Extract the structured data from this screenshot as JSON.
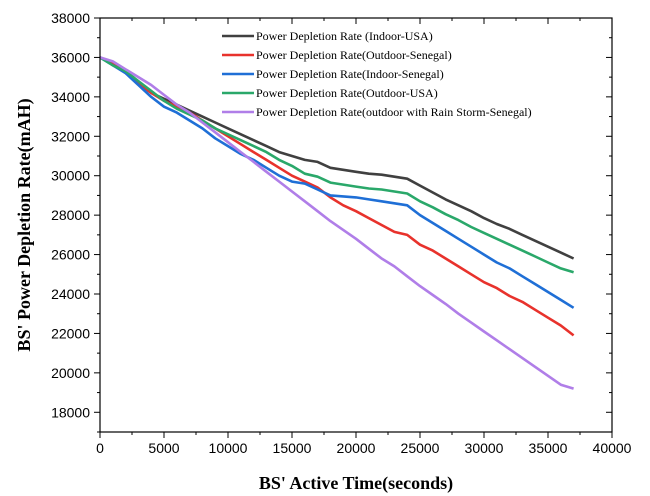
{
  "chart_data": {
    "type": "line",
    "xlabel": "BS' Active Time(seconds)",
    "ylabel": "BS' Power Depletion Rate(mAH)",
    "xlim": [
      0,
      40000
    ],
    "ylim": [
      17000,
      38000
    ],
    "xticks": [
      0,
      5000,
      10000,
      15000,
      20000,
      25000,
      30000,
      35000,
      40000
    ],
    "yticks": [
      18000,
      20000,
      22000,
      24000,
      26000,
      28000,
      30000,
      32000,
      34000,
      36000,
      38000
    ],
    "legend_position": "top-right",
    "grid": false,
    "series": [
      {
        "name": "Power Depletion Rate (Indoor-USA)",
        "color": "#404040",
        "points": [
          [
            0,
            36000
          ],
          [
            1000,
            35700
          ],
          [
            2000,
            35300
          ],
          [
            3000,
            34700
          ],
          [
            4000,
            34200
          ],
          [
            5000,
            33900
          ],
          [
            6000,
            33600
          ],
          [
            7000,
            33300
          ],
          [
            8000,
            33000
          ],
          [
            9000,
            32700
          ],
          [
            10000,
            32400
          ],
          [
            11000,
            32100
          ],
          [
            12000,
            31800
          ],
          [
            13000,
            31500
          ],
          [
            14000,
            31200
          ],
          [
            15000,
            31000
          ],
          [
            16000,
            30800
          ],
          [
            17000,
            30700
          ],
          [
            18000,
            30400
          ],
          [
            19000,
            30300
          ],
          [
            20000,
            30200
          ],
          [
            21000,
            30100
          ],
          [
            22000,
            30050
          ],
          [
            23000,
            29950
          ],
          [
            24000,
            29850
          ],
          [
            25000,
            29500
          ],
          [
            26000,
            29150
          ],
          [
            27000,
            28800
          ],
          [
            28000,
            28500
          ],
          [
            29000,
            28200
          ],
          [
            30000,
            27850
          ],
          [
            31000,
            27550
          ],
          [
            32000,
            27300
          ],
          [
            33000,
            27000
          ],
          [
            34000,
            26700
          ],
          [
            35000,
            26400
          ],
          [
            36000,
            26100
          ],
          [
            37000,
            25800
          ]
        ]
      },
      {
        "name": "Power Depletion Rate(Outdoor-Senegal)",
        "color": "#e8322c",
        "points": [
          [
            0,
            36000
          ],
          [
            1000,
            35700
          ],
          [
            2000,
            35300
          ],
          [
            3000,
            34700
          ],
          [
            4000,
            34200
          ],
          [
            5000,
            33800
          ],
          [
            6000,
            33500
          ],
          [
            7000,
            33200
          ],
          [
            8000,
            32800
          ],
          [
            9000,
            32400
          ],
          [
            10000,
            32000
          ],
          [
            11000,
            31600
          ],
          [
            12000,
            31200
          ],
          [
            13000,
            30800
          ],
          [
            14000,
            30400
          ],
          [
            15000,
            30000
          ],
          [
            16000,
            29700
          ],
          [
            17000,
            29400
          ],
          [
            18000,
            28900
          ],
          [
            19000,
            28500
          ],
          [
            20000,
            28200
          ],
          [
            21000,
            27850
          ],
          [
            22000,
            27500
          ],
          [
            23000,
            27150
          ],
          [
            24000,
            27000
          ],
          [
            25000,
            26500
          ],
          [
            26000,
            26200
          ],
          [
            27000,
            25800
          ],
          [
            28000,
            25400
          ],
          [
            29000,
            25000
          ],
          [
            30000,
            24600
          ],
          [
            31000,
            24300
          ],
          [
            32000,
            23900
          ],
          [
            33000,
            23600
          ],
          [
            34000,
            23200
          ],
          [
            35000,
            22800
          ],
          [
            36000,
            22400
          ],
          [
            37000,
            21900
          ]
        ]
      },
      {
        "name": "Power Depletion Rate(Indoor-Senegal)",
        "color": "#1f6fd6",
        "points": [
          [
            0,
            36000
          ],
          [
            1000,
            35600
          ],
          [
            2000,
            35200
          ],
          [
            3000,
            34600
          ],
          [
            4000,
            34000
          ],
          [
            5000,
            33500
          ],
          [
            6000,
            33200
          ],
          [
            7000,
            32800
          ],
          [
            8000,
            32400
          ],
          [
            9000,
            31900
          ],
          [
            10000,
            31500
          ],
          [
            11000,
            31100
          ],
          [
            12000,
            30800
          ],
          [
            13000,
            30400
          ],
          [
            14000,
            30000
          ],
          [
            15000,
            29700
          ],
          [
            16000,
            29600
          ],
          [
            17000,
            29300
          ],
          [
            18000,
            29000
          ],
          [
            19000,
            28950
          ],
          [
            20000,
            28900
          ],
          [
            21000,
            28800
          ],
          [
            22000,
            28700
          ],
          [
            23000,
            28600
          ],
          [
            24000,
            28500
          ],
          [
            25000,
            28000
          ],
          [
            26000,
            27600
          ],
          [
            27000,
            27200
          ],
          [
            28000,
            26800
          ],
          [
            29000,
            26400
          ],
          [
            30000,
            26000
          ],
          [
            31000,
            25600
          ],
          [
            32000,
            25300
          ],
          [
            33000,
            24900
          ],
          [
            34000,
            24500
          ],
          [
            35000,
            24100
          ],
          [
            36000,
            23700
          ],
          [
            37000,
            23300
          ]
        ]
      },
      {
        "name": "Power Depletion Rate(Outdoor-USA)",
        "color": "#2aa86a",
        "points": [
          [
            0,
            36000
          ],
          [
            1000,
            35600
          ],
          [
            2000,
            35300
          ],
          [
            3000,
            34800
          ],
          [
            4000,
            34300
          ],
          [
            5000,
            33800
          ],
          [
            6000,
            33400
          ],
          [
            7000,
            33100
          ],
          [
            8000,
            32800
          ],
          [
            9000,
            32400
          ],
          [
            10000,
            32100
          ],
          [
            11000,
            31800
          ],
          [
            12000,
            31500
          ],
          [
            13000,
            31200
          ],
          [
            14000,
            30800
          ],
          [
            15000,
            30500
          ],
          [
            16000,
            30100
          ],
          [
            17000,
            29950
          ],
          [
            18000,
            29650
          ],
          [
            19000,
            29550
          ],
          [
            20000,
            29450
          ],
          [
            21000,
            29350
          ],
          [
            22000,
            29300
          ],
          [
            23000,
            29200
          ],
          [
            24000,
            29100
          ],
          [
            25000,
            28700
          ],
          [
            26000,
            28400
          ],
          [
            27000,
            28050
          ],
          [
            28000,
            27750
          ],
          [
            29000,
            27400
          ],
          [
            30000,
            27100
          ],
          [
            31000,
            26800
          ],
          [
            32000,
            26500
          ],
          [
            33000,
            26200
          ],
          [
            34000,
            25900
          ],
          [
            35000,
            25600
          ],
          [
            36000,
            25300
          ],
          [
            37000,
            25100
          ]
        ]
      },
      {
        "name": "Power Depletion Rate(outdoor with Rain Storm-Senegal)",
        "color": "#b07ee8",
        "points": [
          [
            0,
            36000
          ],
          [
            1000,
            35800
          ],
          [
            2000,
            35400
          ],
          [
            3000,
            35000
          ],
          [
            4000,
            34600
          ],
          [
            5000,
            34100
          ],
          [
            6000,
            33600
          ],
          [
            7000,
            33200
          ],
          [
            8000,
            32700
          ],
          [
            9000,
            32200
          ],
          [
            10000,
            31700
          ],
          [
            11000,
            31200
          ],
          [
            12000,
            30700
          ],
          [
            13000,
            30200
          ],
          [
            14000,
            29700
          ],
          [
            15000,
            29200
          ],
          [
            16000,
            28700
          ],
          [
            17000,
            28200
          ],
          [
            18000,
            27700
          ],
          [
            19000,
            27250
          ],
          [
            20000,
            26800
          ],
          [
            21000,
            26300
          ],
          [
            22000,
            25800
          ],
          [
            23000,
            25400
          ],
          [
            24000,
            24900
          ],
          [
            25000,
            24400
          ],
          [
            26000,
            23950
          ],
          [
            27000,
            23500
          ],
          [
            28000,
            23000
          ],
          [
            29000,
            22550
          ],
          [
            30000,
            22100
          ],
          [
            31000,
            21650
          ],
          [
            32000,
            21200
          ],
          [
            33000,
            20750
          ],
          [
            34000,
            20300
          ],
          [
            35000,
            19850
          ],
          [
            36000,
            19400
          ],
          [
            37000,
            19200
          ]
        ]
      }
    ]
  }
}
